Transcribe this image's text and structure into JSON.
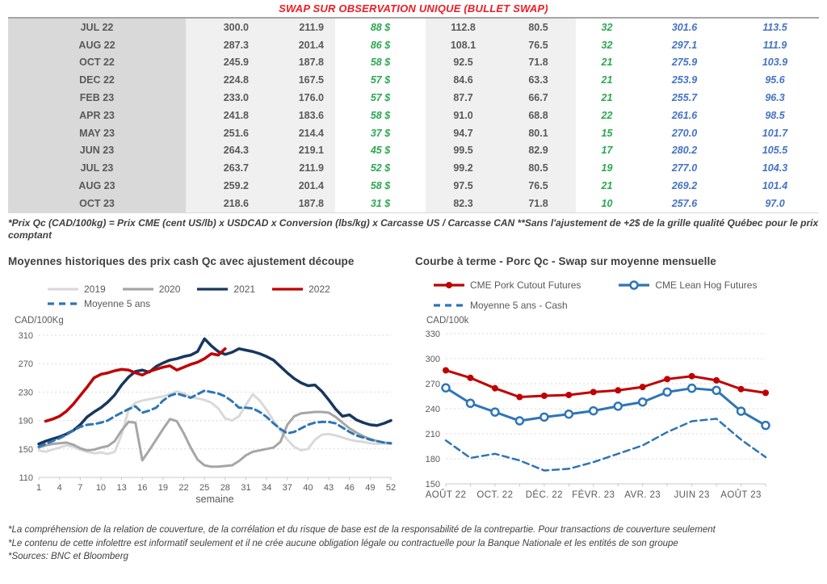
{
  "title": "SWAP SUR OBSERVATION UNIQUE (BULLET SWAP)",
  "colors": {
    "title_red": "#ed1c24",
    "green": "#2aa84f",
    "blue_num": "#4472c4",
    "num_gray": "#595959",
    "col_month_bg": "#d9d9d9",
    "col_light_bg": "#f0f0f0",
    "navy": "#17375d",
    "dark_red": "#c00000",
    "mid_blue": "#2e75b6",
    "gray_2020": "#a6a6a6",
    "light_2019": "#d9d9d9"
  },
  "table": {
    "rows": [
      [
        "JUL 22",
        "300.0",
        "211.9",
        "88 $",
        "112.8",
        "80.5",
        "32",
        "301.6",
        "113.5"
      ],
      [
        "AUG 22",
        "287.3",
        "201.4",
        "86 $",
        "108.1",
        "76.5",
        "32",
        "297.1",
        "111.9"
      ],
      [
        "OCT 22",
        "245.9",
        "187.8",
        "58 $",
        "92.5",
        "71.8",
        "21",
        "275.9",
        "103.9"
      ],
      [
        "DEC 22",
        "224.8",
        "167.5",
        "57 $",
        "84.6",
        "63.3",
        "21",
        "253.9",
        "95.6"
      ],
      [
        "FEB 23",
        "233.0",
        "176.0",
        "57 $",
        "87.7",
        "66.7",
        "21",
        "255.7",
        "96.3"
      ],
      [
        "APR 23",
        "241.8",
        "183.6",
        "58 $",
        "91.0",
        "68.8",
        "22",
        "261.6",
        "98.5"
      ],
      [
        "MAY 23",
        "251.6",
        "214.4",
        "37 $",
        "94.7",
        "80.1",
        "15",
        "270.0",
        "101.7"
      ],
      [
        "JUN 23",
        "264.3",
        "219.1",
        "45 $",
        "99.5",
        "82.9",
        "17",
        "280.2",
        "105.5"
      ],
      [
        "JUL 23",
        "263.7",
        "211.9",
        "52 $",
        "99.2",
        "80.5",
        "19",
        "277.0",
        "104.3"
      ],
      [
        "AUG 23",
        "259.2",
        "201.4",
        "58 $",
        "97.5",
        "76.5",
        "21",
        "269.2",
        "101.4"
      ],
      [
        "OCT 23",
        "218.6",
        "187.8",
        "31 $",
        "82.3",
        "71.8",
        "10",
        "257.6",
        "97.0"
      ]
    ]
  },
  "footnote": "*Prix Qc (CAD/100kg) = Prix CME (cent US/lb) x USDCAD x Conversion (lbs/kg) x Carcasse US / Carcasse CAN **Sans l'ajustement de +2$ de la grille qualité Québec pour le prix comptant",
  "charts": [
    {
      "chart_data": {
        "type": "line",
        "title": "Moyennes historiques des prix cash Qc avec ajustement découpe",
        "ylabel": "CAD/100Kg",
        "xlabel": "semaine",
        "ylim": [
          110,
          310
        ],
        "ytick_step": 40,
        "x_mode": "weeks",
        "x_max": 52,
        "x_ticks": [
          1,
          4,
          7,
          10,
          13,
          16,
          19,
          22,
          25,
          28,
          31,
          34,
          37,
          40,
          43,
          46,
          49,
          52
        ],
        "grid": "dashed-horizontal",
        "legend_position": "top",
        "series": [
          {
            "id": "2019",
            "name": "2019",
            "color": "#d9d9d9",
            "dash": false,
            "marker": "none",
            "width": 3,
            "x_start": 1,
            "values": [
              148,
              146,
              149,
              152,
              155,
              153,
              149,
              146,
              144,
              145,
              143,
              146,
              170,
              205,
              215,
              218,
              220,
              222,
              224,
              227,
              231,
              228,
              223,
              221,
              219,
              215,
              207,
              193,
              190,
              196,
              212,
              227,
              218,
              205,
              190,
              176,
              163,
              153,
              148,
              150,
              163,
              170,
              171,
              169,
              166,
              163,
              161,
              160,
              158,
              157,
              158,
              157
            ]
          },
          {
            "id": "2020",
            "name": "2020",
            "color": "#a6a6a6",
            "dash": false,
            "marker": "none",
            "width": 3,
            "x_start": 1,
            "values": [
              152,
              155,
              157,
              158,
              159,
              156,
              151,
              148,
              149,
              152,
              154,
              161,
              176,
              188,
              187,
              134,
              148,
              163,
              178,
              192,
              189,
              172,
              152,
              135,
              127,
              125,
              125,
              126,
              127,
              133,
              141,
              146,
              148,
              150,
              152,
              160,
              184,
              196,
              200,
              201,
              202,
              202,
              201,
              195,
              187,
              179,
              173,
              168,
              164,
              161,
              159,
              158
            ]
          },
          {
            "id": "2021",
            "name": "2021",
            "color": "#17375d",
            "dash": false,
            "marker": "none",
            "width": 3.5,
            "x_start": 1,
            "values": [
              157,
              161,
              164,
              167,
              171,
              176,
              184,
              195,
              202,
              208,
              216,
              226,
              240,
              251,
              259,
              261,
              258,
              266,
              271,
              275,
              277,
              280,
              282,
              287,
              305,
              295,
              287,
              283,
              286,
              291,
              289,
              287,
              284,
              280,
              275,
              266,
              257,
              249,
              243,
              239,
              240,
              231,
              219,
              206,
              196,
              198,
              191,
              187,
              184,
              183,
              186,
              190
            ]
          },
          {
            "id": "2022",
            "name": "2022",
            "color": "#c00000",
            "dash": false,
            "marker": "none",
            "width": 3.5,
            "x_start": 2,
            "values": [
              189,
              192,
              196,
              203,
              213,
              225,
              237,
              250,
              255,
              257,
              260,
              262,
              261,
              257,
              254,
              259,
              262,
              265,
              267,
              261,
              265,
              269,
              272,
              277,
              284,
              282,
              291
            ]
          },
          {
            "id": "moyenne-5-ans",
            "name": "Moyenne 5 ans",
            "color": "#2e75b6",
            "dash": true,
            "marker": "none",
            "width": 3,
            "x_start": 1,
            "values": [
              153,
              157,
              161,
              165,
              170,
              176,
              181,
              184,
              185,
              187,
              190,
              196,
              201,
              206,
              210,
              201,
              204,
              208,
              218,
              225,
              228,
              225,
              222,
              227,
              232,
              230,
              228,
              224,
              217,
              208,
              208,
              207,
              202,
              195,
              186,
              178,
              172,
              174,
              179,
              184,
              187,
              188,
              188,
              186,
              180,
              174,
              169,
              166,
              163,
              161,
              159,
              158
            ]
          }
        ]
      }
    },
    {
      "chart_data": {
        "type": "line",
        "title": "Courbe à terme - Porc Qc - Swap sur moyenne mensuelle",
        "ylabel": "CAD/100k",
        "xlabel": "",
        "ylim": [
          150,
          330
        ],
        "ytick_step": 30,
        "x_mode": "categories",
        "n_points": 14,
        "x_tick_labels": [
          "AOÛT 22",
          "OCT. 22",
          "DÉC. 22",
          "FÉVR. 23",
          "AVR. 23",
          "JUIN 23",
          "AOÛT 23"
        ],
        "x_tick_positions": [
          0,
          2,
          4,
          6,
          8,
          10,
          12
        ],
        "grid": "dashed-horizontal",
        "legend_position": "top",
        "series": [
          {
            "id": "cme-pork-cutout-futures",
            "name": "CME Pork Cutout Futures",
            "color": "#c00000",
            "dash": false,
            "marker": "dot",
            "width": 3,
            "values": [
              286,
              277,
              264.5,
              254,
              255.5,
              256.5,
              260,
              262,
              266,
              275.5,
              279,
              274,
              263.5,
              259
            ]
          },
          {
            "id": "cme-lean-hog-futures",
            "name": "CME Lean Hog Futures",
            "color": "#2e75b6",
            "dash": false,
            "marker": "circle",
            "width": 3,
            "values": [
              265,
              246.5,
              236,
              225.5,
              230,
              233.5,
              237.5,
              243,
              248,
              260,
              264.5,
              262,
              237,
              220
            ]
          },
          {
            "id": "moyenne-5-ans-cash",
            "name": "Moyenne 5 ans - Cash",
            "color": "#2e75b6",
            "dash": true,
            "marker": "none",
            "width": 2.5,
            "values": [
              202,
              181,
              186,
              178,
              166,
              168,
              176,
              186,
              196,
              212,
              225,
              228,
              203,
              182
            ]
          }
        ]
      }
    }
  ],
  "footer": [
    "*La compréhension de la relation de couverture, de la corrélation et du risque de base est de la responsabilité de la contrepartie. Pour transactions de couverture seulement",
    "*Le contenu de cette infolettre est informatif seulement et il ne crée aucune obligation légale ou contractuelle pour la Banque Nationale et les entités de son groupe",
    "*Sources: BNC et Bloomberg"
  ]
}
